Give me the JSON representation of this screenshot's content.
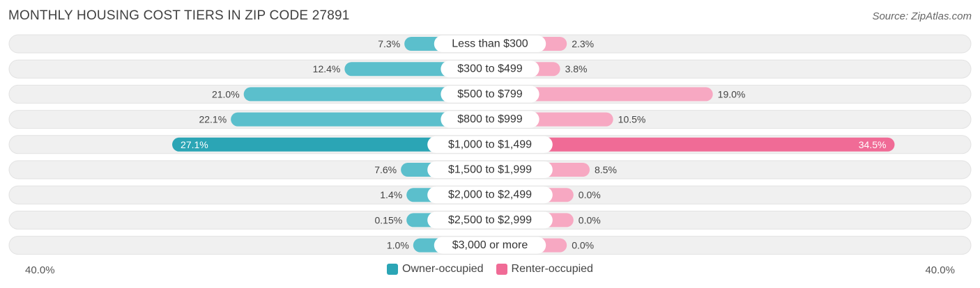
{
  "title": "MONTHLY HOUSING COST TIERS IN ZIP CODE 27891",
  "source": "Source: ZipAtlas.com",
  "colors": {
    "owner": "#5bbfcc",
    "owner_strong": "#2ba5b5",
    "renter": "#f7a8c2",
    "renter_strong": "#f06b96",
    "track": "#f0f0f0"
  },
  "axis": {
    "left_label": "40.0%",
    "right_label": "40.0%"
  },
  "legend": [
    {
      "label": "Owner-occupied",
      "color": "#2ba5b5"
    },
    {
      "label": "Renter-occupied",
      "color": "#f06b96"
    }
  ],
  "chart_data": {
    "type": "bar",
    "title": "MONTHLY HOUSING COST TIERS IN ZIP CODE 27891",
    "xlim": [
      -40,
      40
    ],
    "categories": [
      "Less than $300",
      "$300 to $499",
      "$500 to $799",
      "$800 to $999",
      "$1,000 to $1,499",
      "$1,500 to $1,999",
      "$2,000 to $2,499",
      "$2,500 to $2,999",
      "$3,000 or more"
    ],
    "series": [
      {
        "name": "Owner-occupied",
        "values": [
          7.3,
          12.4,
          21.0,
          22.1,
          27.1,
          7.6,
          1.4,
          0.15,
          1.0
        ],
        "labels": [
          "7.3%",
          "12.4%",
          "21.0%",
          "22.1%",
          "27.1%",
          "7.6%",
          "1.4%",
          "0.15%",
          "1.0%"
        ]
      },
      {
        "name": "Renter-occupied",
        "values": [
          2.3,
          3.8,
          19.0,
          10.5,
          34.5,
          8.5,
          0.0,
          0.0,
          0.0
        ],
        "labels": [
          "2.3%",
          "3.8%",
          "19.0%",
          "10.5%",
          "34.5%",
          "8.5%",
          "0.0%",
          "0.0%",
          "0.0%"
        ]
      }
    ]
  }
}
